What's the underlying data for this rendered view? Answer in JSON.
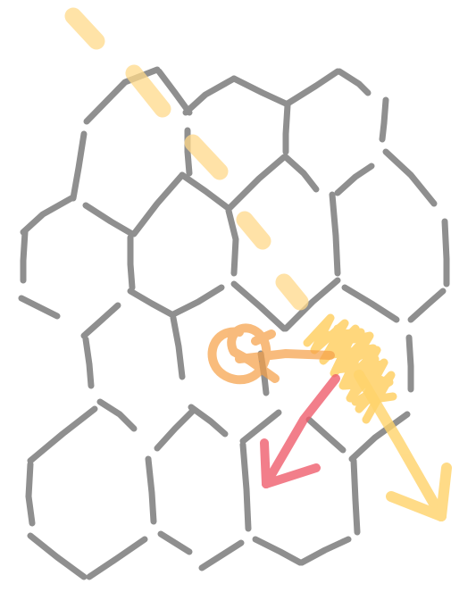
{
  "diagram": {
    "type": "hand-drawn hexagon grid sketch",
    "colors": {
      "background": "#ffffff",
      "grid": "#8a8a8a",
      "dashed_path": "#ffd98a",
      "scribble": "#ffc94a",
      "loop_arrow": "#f6a24a",
      "red_arrow": "#ef5a6a",
      "yellow_arrow": "#ffd36a"
    },
    "icons": {
      "loop": "orange-loop-arrow-icon",
      "red_arrow": "red-down-left-arrow-icon",
      "yellow_arrow": "yellow-down-right-arrow-icon"
    }
  }
}
